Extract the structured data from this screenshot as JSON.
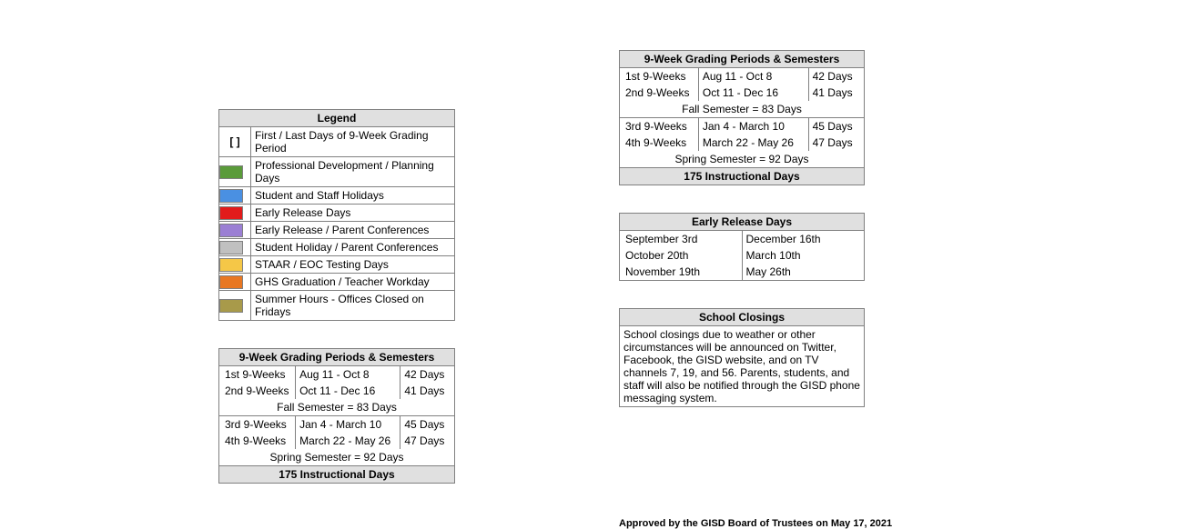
{
  "legend": {
    "title": "Legend",
    "items": [
      {
        "swatch": "brackets",
        "text": "[  ]",
        "label": "First / Last Days of 9-Week Grading Period"
      },
      {
        "swatch": "color",
        "color": "#5a9b3a",
        "label": "Professional Development / Planning Days"
      },
      {
        "swatch": "color",
        "color": "#4a90e2",
        "label": "Student and Staff Holidays"
      },
      {
        "swatch": "color",
        "color": "#e21b1b",
        "label": "Early Release Days"
      },
      {
        "swatch": "color",
        "color": "#9b7fd4",
        "label": "Early Release / Parent Conferences"
      },
      {
        "swatch": "color",
        "color": "#c0c0c0",
        "label": "Student Holiday / Parent Conferences"
      },
      {
        "swatch": "color",
        "color": "#f5c747",
        "label": "STAAR / EOC Testing Days"
      },
      {
        "swatch": "color",
        "color": "#e87722",
        "label": "GHS Graduation / Teacher Workday"
      },
      {
        "swatch": "color",
        "color": "#a89a4a",
        "label": "Summer Hours - Offices Closed on Fridays"
      }
    ]
  },
  "gradingPeriods": {
    "title": "9-Week Grading Periods & Semesters",
    "fall": [
      {
        "name": "1st 9-Weeks",
        "range": "Aug 11 - Oct 8",
        "days": "42 Days"
      },
      {
        "name": "2nd 9-Weeks",
        "range": "Oct 11 - Dec 16",
        "days": "41 Days"
      }
    ],
    "fallTotal": "Fall Semester = 83 Days",
    "spring": [
      {
        "name": "3rd 9-Weeks",
        "range": "Jan 4 - March 10",
        "days": "45 Days"
      },
      {
        "name": "4th 9-Weeks",
        "range": "March 22 - May 26",
        "days": "47 Days"
      }
    ],
    "springTotal": "Spring Semester = 92 Days",
    "grandTotal": "175 Instructional Days"
  },
  "earlyRelease": {
    "title": "Early Release Days",
    "rows": [
      {
        "left": "September 3rd",
        "right": "December 16th"
      },
      {
        "left": "October 20th",
        "right": "March 10th"
      },
      {
        "left": "November 19th",
        "right": "May 26th"
      }
    ]
  },
  "schoolClosings": {
    "title": "School Closings",
    "body": "School closings due to weather or other circumstances will be announced on Twitter, Facebook, the GISD website, and on TV channels 7, 19, and 56.  Parents, students, and staff will also be notified through the GISD phone messaging system."
  },
  "footer": "Approved by the GISD Board of Trustees on May 17, 2021"
}
